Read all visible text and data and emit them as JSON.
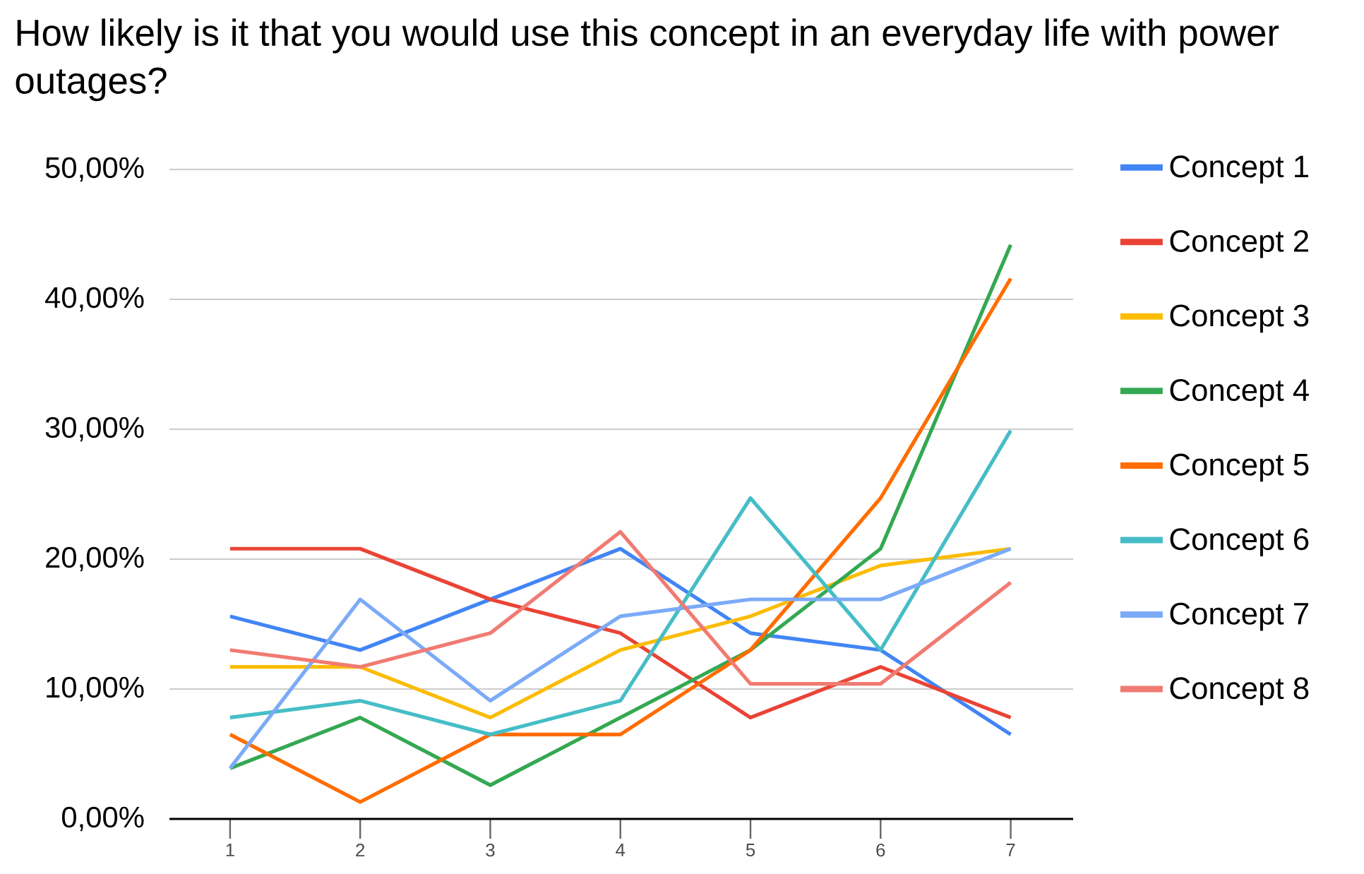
{
  "chart_data": {
    "type": "line",
    "title": "How likely is it that you would use this concept in an everyday life with power outages?",
    "categories": [
      "1",
      "2",
      "3",
      "4",
      "5",
      "6",
      "7"
    ],
    "series": [
      {
        "name": "Concept 1",
        "color": "#4285f4",
        "values": [
          15.6,
          13.0,
          16.9,
          20.8,
          14.3,
          13.0,
          6.5
        ]
      },
      {
        "name": "Concept 2",
        "color": "#ea4335",
        "values": [
          20.8,
          20.8,
          16.9,
          14.3,
          7.8,
          11.7,
          7.8
        ]
      },
      {
        "name": "Concept 3",
        "color": "#fbbc04",
        "values": [
          11.7,
          11.7,
          7.8,
          13.0,
          15.6,
          19.5,
          20.8
        ]
      },
      {
        "name": "Concept 4",
        "color": "#34a853",
        "values": [
          3.9,
          7.8,
          2.6,
          7.8,
          13.0,
          20.8,
          44.2
        ]
      },
      {
        "name": "Concept 5",
        "color": "#ff6d01",
        "values": [
          6.5,
          1.3,
          6.5,
          6.5,
          13.0,
          24.7,
          41.6
        ]
      },
      {
        "name": "Concept 6",
        "color": "#46bdc6",
        "values": [
          7.8,
          9.1,
          6.5,
          9.1,
          24.7,
          13.0,
          29.9
        ]
      },
      {
        "name": "Concept 7",
        "color": "#7baaf7",
        "values": [
          3.9,
          16.9,
          9.1,
          15.6,
          16.9,
          16.9,
          20.8
        ]
      },
      {
        "name": "Concept 8",
        "color": "#f07b72",
        "values": [
          13.0,
          11.7,
          14.3,
          22.1,
          10.4,
          10.4,
          18.2
        ]
      }
    ],
    "ylim": [
      0,
      50
    ],
    "yticks": [
      {
        "value": 0,
        "label": "0,00%"
      },
      {
        "value": 10,
        "label": "10,00%"
      },
      {
        "value": 20,
        "label": "20,00%"
      },
      {
        "value": 30,
        "label": "30,00%"
      },
      {
        "value": 40,
        "label": "40,00%"
      },
      {
        "value": 50,
        "label": "50,00%"
      }
    ],
    "grid": "y",
    "legend": "right",
    "marker": "none",
    "line_style": "solid"
  }
}
